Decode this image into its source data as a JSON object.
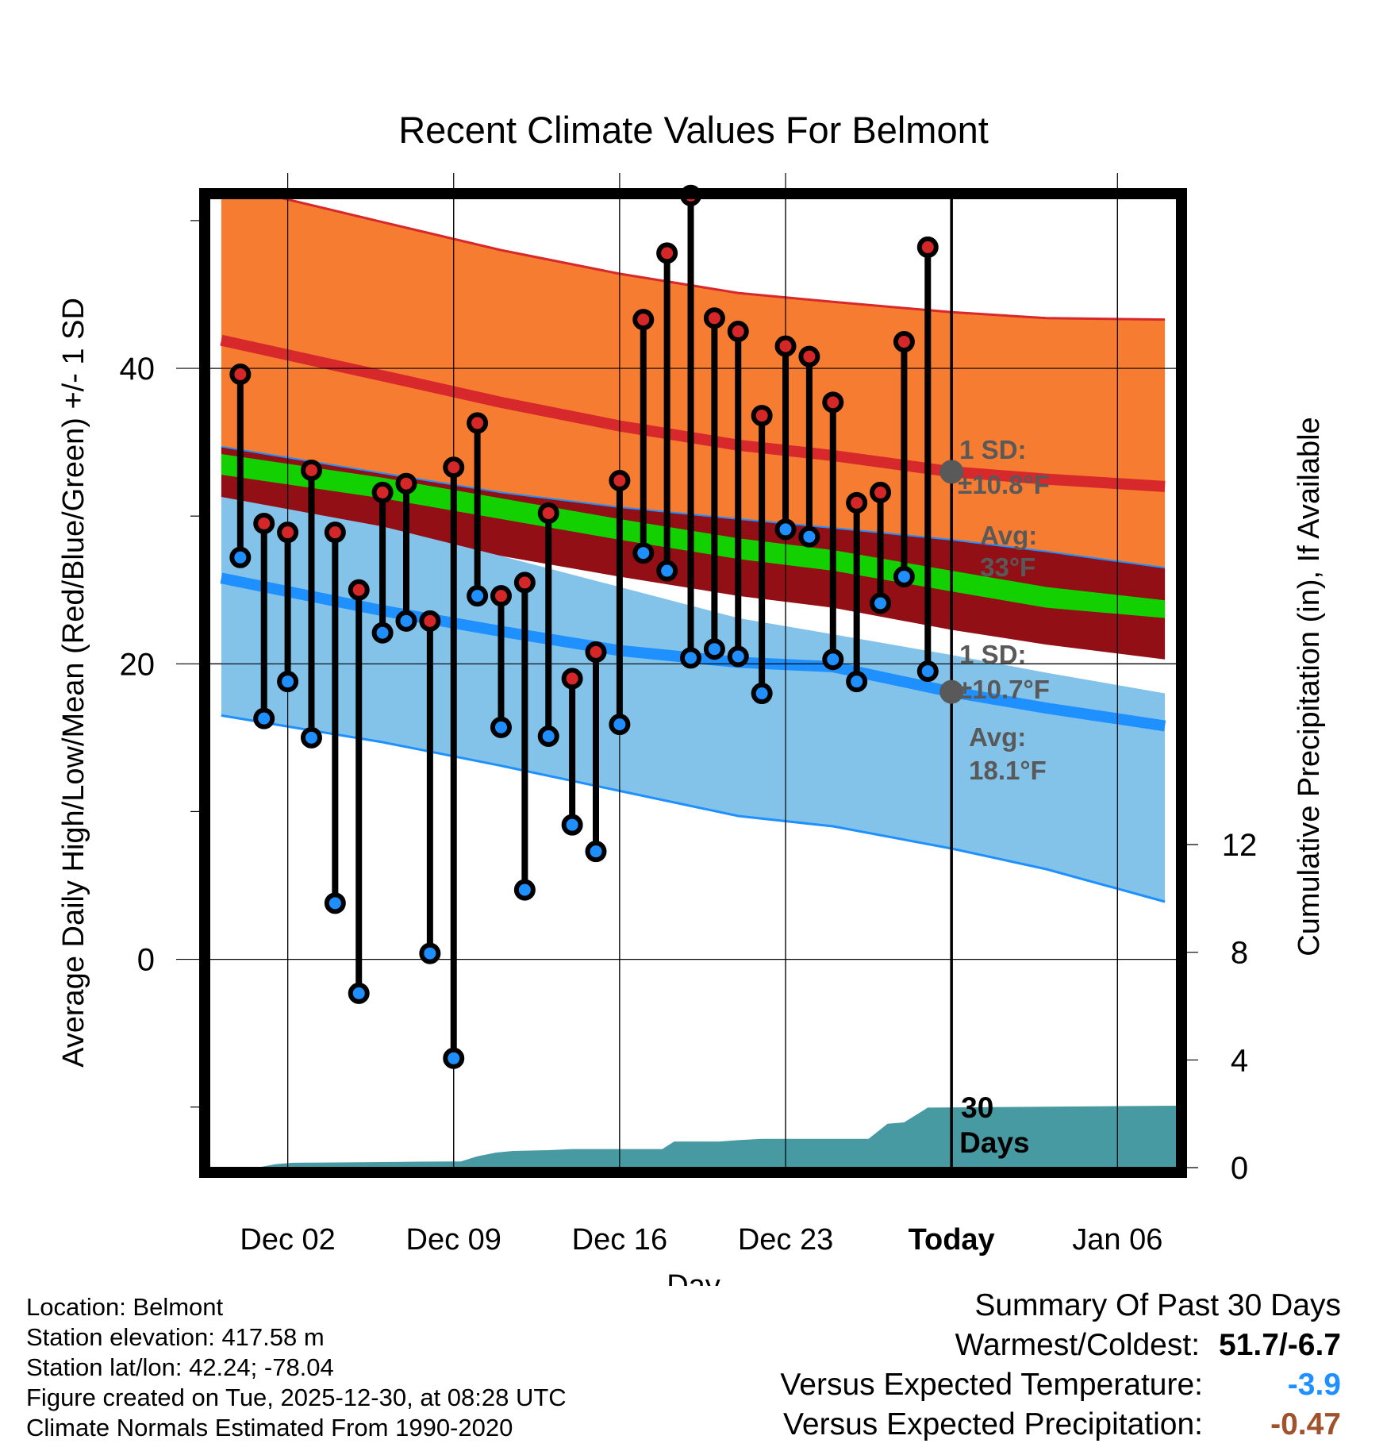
{
  "chart_data": {
    "type": "line",
    "title": "Recent Climate Values For Belmont",
    "xlabel": "Day",
    "ylabel": "Average Daily High/Low/Mean (Red/Blue/Green) +/- 1 SD",
    "ylabel_right": "Cumulative Precipitation (in), If Available",
    "xlim": [
      -3.3,
      37.5
    ],
    "ylim": [
      -14.1,
      51.5
    ],
    "ylim_right": [
      0,
      36
    ],
    "x_ticks": [
      {
        "x": 0,
        "label": "Dec 02"
      },
      {
        "x": 7,
        "label": "Dec 09"
      },
      {
        "x": 14,
        "label": "Dec 16"
      },
      {
        "x": 21,
        "label": "Dec 23"
      },
      {
        "x": 28,
        "label": "Today"
      },
      {
        "x": 35,
        "label": "Jan 06"
      }
    ],
    "y_ticks": [
      0,
      20,
      40
    ],
    "y_minor_ticks": [
      -10,
      10,
      30,
      50
    ],
    "y_ticks_right": [
      0,
      4,
      8,
      12
    ],
    "today_x": 28,
    "normals": {
      "x": [
        -2.8,
        4,
        9,
        14,
        19,
        23,
        28,
        32,
        37
      ],
      "high_upper": [
        52.5,
        49.9,
        48.0,
        46.4,
        45.1,
        44.5,
        43.8,
        43.4,
        43.3
      ],
      "high_mean": [
        41.9,
        39.5,
        37.7,
        36.1,
        34.8,
        34.1,
        33.0,
        32.5,
        32.0
      ],
      "mean_upper": [
        34.2,
        32.6,
        31.2,
        29.8,
        28.5,
        27.7,
        26.3,
        25.2,
        24.3
      ],
      "mean_lower": [
        32.8,
        31.2,
        29.8,
        28.4,
        27.1,
        26.3,
        24.9,
        23.8,
        23.1
      ],
      "mean_band_upper": [
        34.7,
        32.9,
        31.6,
        30.6,
        29.8,
        29.2,
        28.4,
        27.6,
        26.5
      ],
      "mean_band_lower": [
        31.1,
        28.8,
        27.3,
        25.9,
        24.6,
        23.8,
        22.3,
        21.3,
        20.3
      ],
      "low_upper": [
        31.3,
        29.3,
        27.3,
        25.2,
        23.1,
        22.0,
        20.6,
        19.4,
        18.0
      ],
      "low_mean": [
        25.8,
        23.6,
        22.2,
        20.9,
        20.1,
        19.8,
        18.1,
        17.0,
        15.8
      ],
      "low_lower": [
        16.5,
        14.7,
        13.1,
        11.4,
        9.7,
        9.0,
        7.5,
        6.1,
        3.9
      ]
    },
    "series": [
      {
        "name": "High",
        "color": "#d62728",
        "values": [
          39.6,
          29.5,
          28.9,
          33.1,
          28.9,
          25.0,
          31.6,
          32.2,
          22.9,
          33.3,
          36.3,
          24.6,
          25.5,
          30.2,
          19.0,
          20.8,
          32.4,
          43.3,
          47.8,
          51.7,
          43.4,
          42.5,
          36.8,
          41.5,
          40.8,
          37.7,
          30.9,
          31.6,
          41.8,
          48.2
        ]
      },
      {
        "name": "Low",
        "color": "#1f8fff",
        "values": [
          27.2,
          16.3,
          18.8,
          15.0,
          3.8,
          -2.3,
          22.1,
          22.9,
          0.4,
          -6.7,
          24.6,
          15.7,
          4.7,
          15.1,
          9.1,
          7.3,
          15.9,
          27.5,
          26.3,
          20.4,
          21.0,
          20.5,
          18.0,
          29.1,
          28.6,
          20.3,
          18.8,
          24.1,
          25.9,
          19.5
        ]
      }
    ],
    "day_x": [
      -2,
      -1,
      0,
      1,
      2,
      3,
      4,
      5,
      6,
      7,
      8,
      9,
      10,
      11,
      12,
      13,
      14,
      15,
      16,
      17,
      18,
      19,
      20,
      21,
      22,
      23,
      24,
      25,
      26,
      27
    ],
    "precip_cumulative": {
      "x": [
        -3.3,
        -1.3,
        -0.5,
        0.2,
        1.5,
        4.5,
        5.5,
        7.0,
        7.3,
        8.0,
        8.8,
        9.5,
        11,
        12,
        14,
        15.8,
        16.3,
        17.0,
        18.2,
        19.0,
        20.0,
        20.8,
        22.2,
        23.0,
        24.0,
        24.5,
        25.3,
        26.0,
        27.0,
        37.5
      ],
      "values": [
        0,
        0,
        0.13,
        0.18,
        0.19,
        0.21,
        0.22,
        0.23,
        0.23,
        0.42,
        0.56,
        0.62,
        0.65,
        0.69,
        0.69,
        0.69,
        0.97,
        0.97,
        0.97,
        1.02,
        1.07,
        1.07,
        1.07,
        1.07,
        1.07,
        1.07,
        1.63,
        1.68,
        2.23,
        2.3
      ]
    },
    "annotations": {
      "high_sd_title": "1 SD:",
      "high_sd_value": "±10.8°F",
      "high_avg_title": "Avg:",
      "high_avg_value": "33°F",
      "high_avg_y": 33,
      "low_sd_title": "1 SD:",
      "low_sd_value": "±10.7°F",
      "low_avg_title": "Avg:",
      "low_avg_value": "18.1°F",
      "low_avg_y": 18.1,
      "days_num": "30",
      "days_word": "Days"
    },
    "colors": {
      "high_band": "#f67c31",
      "high_line": "#d7282c",
      "mean_band": "#930f16",
      "mean_line": "#13d000",
      "low_band": "#84c3e9",
      "low_line": "#1e90ff",
      "precip": "#479aa2",
      "annotation": "#595959"
    }
  },
  "footer": {
    "location": "Location: Belmont",
    "elevation": "Station elevation: 417.58 m",
    "latlon": "Station lat/lon: 42.24; -78.04",
    "created": "Figure created on Tue, 2025-12-30, at 08:28 UTC",
    "normals": "Climate Normals Estimated From 1990-2020"
  },
  "summary": {
    "title": "Summary Of Past 30 Days",
    "warmest_label": "Warmest/Coldest:",
    "warmest_value": "51.7/-6.7",
    "temp_label": "Versus Expected Temperature:",
    "temp_value": "-3.9",
    "temp_color": "#1e90ff",
    "precip_label": "Versus Expected Precipitation:",
    "precip_value": "-0.47",
    "precip_color": "#a0522d"
  }
}
